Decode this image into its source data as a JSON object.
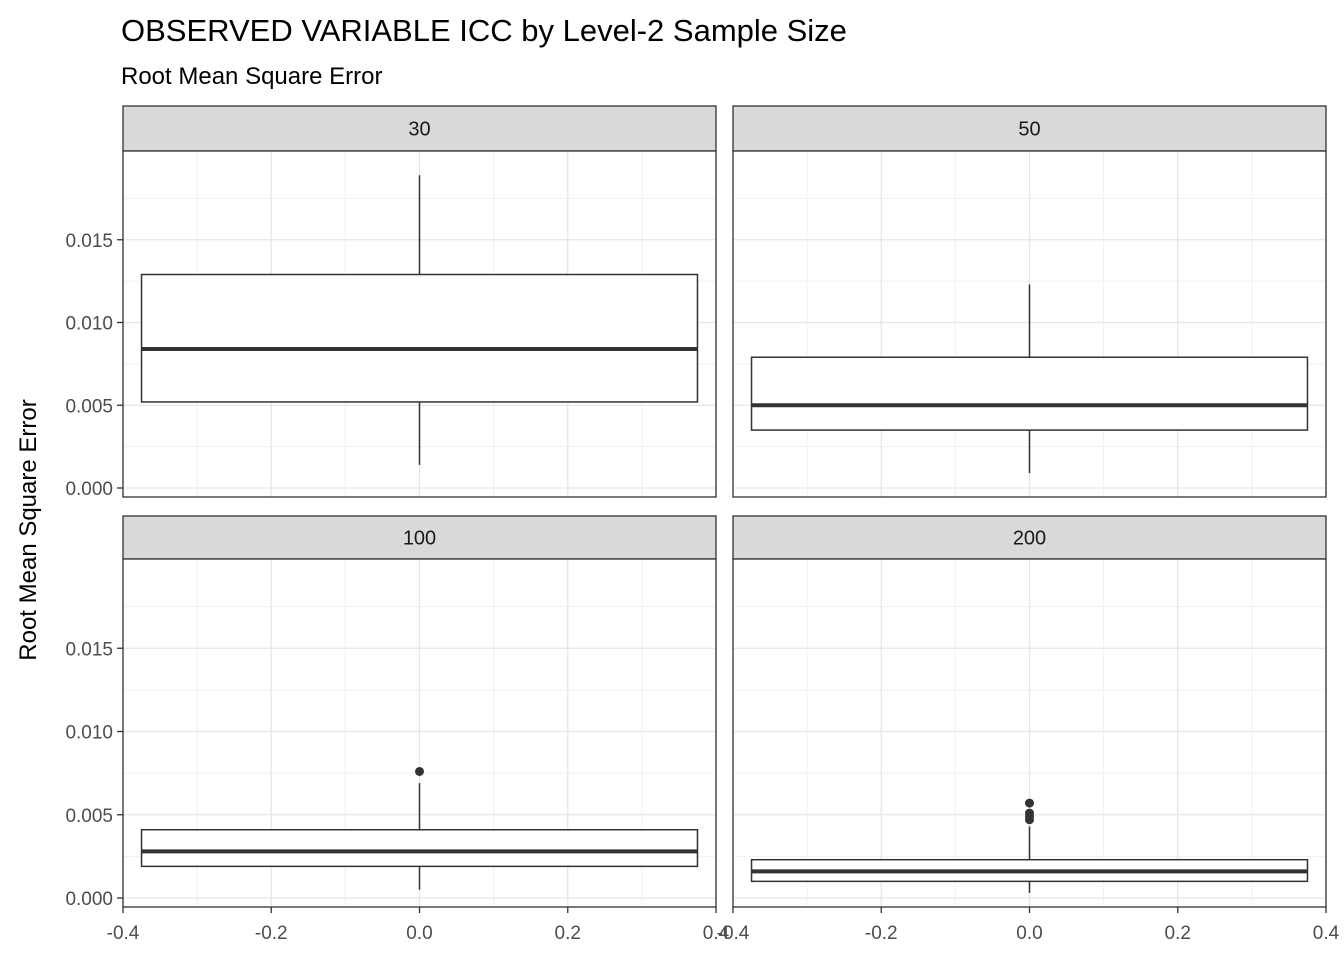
{
  "chart_data": {
    "type": "boxplot",
    "title": "OBSERVED VARIABLE ICC by Level-2 Sample Size",
    "subtitle": "Root Mean Square Error",
    "ylabel": "Root Mean Square Error",
    "xlabel": "",
    "xlim": [
      -0.4,
      0.4
    ],
    "ylim": [
      0.0,
      0.02
    ],
    "x_ticks": [
      -0.4,
      -0.2,
      0.0,
      0.2,
      0.4
    ],
    "x_tick_labels": [
      "-0.4",
      "-0.2",
      "0.0",
      "0.2",
      "0.4"
    ],
    "y_ticks": [
      0.0,
      0.005,
      0.01,
      0.015
    ],
    "y_tick_labels": [
      "0.000",
      "0.005",
      "0.010",
      "0.015"
    ],
    "grid": true,
    "facet_layout": "2x2",
    "panels": [
      {
        "label": "30",
        "min": 0.0014,
        "q1": 0.0052,
        "median": 0.0084,
        "q3": 0.0129,
        "max": 0.0189,
        "outliers": []
      },
      {
        "label": "50",
        "min": 0.0009,
        "q1": 0.0035,
        "median": 0.005,
        "q3": 0.0079,
        "max": 0.0123,
        "outliers": []
      },
      {
        "label": "100",
        "min": 0.0005,
        "q1": 0.0019,
        "median": 0.0028,
        "q3": 0.0041,
        "max": 0.0069,
        "outliers": [
          0.0076
        ]
      },
      {
        "label": "200",
        "min": 0.0003,
        "q1": 0.001,
        "median": 0.0016,
        "q3": 0.0023,
        "max": 0.0043,
        "outliers": [
          0.0047,
          0.0049,
          0.0051,
          0.0057
        ]
      }
    ]
  }
}
